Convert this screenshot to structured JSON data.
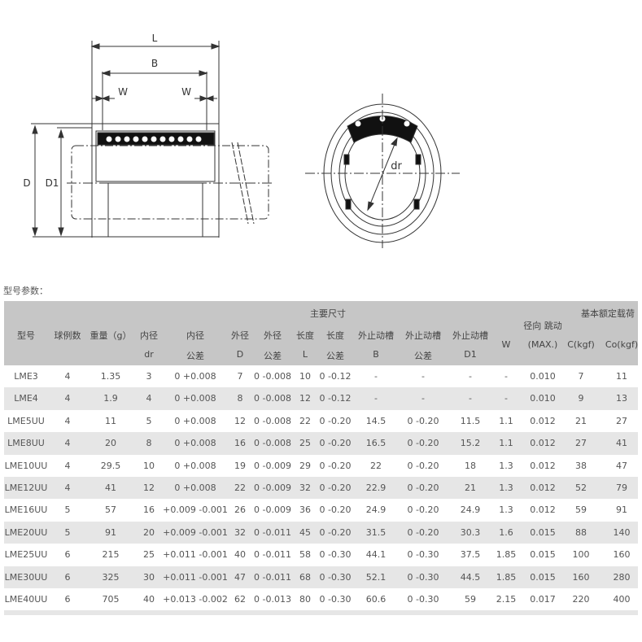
{
  "drawing": {
    "labels": {
      "L": "L",
      "B": "B",
      "W_left": "W",
      "W_right": "W",
      "D": "D",
      "D1": "D1",
      "dr": "dr"
    }
  },
  "section_label": "型号参数：",
  "table": {
    "group_headers": {
      "main_dims": "主要尺寸",
      "load_rating": "基本额定载荷"
    },
    "headers": [
      {
        "top": "型号",
        "bottom": ""
      },
      {
        "top": "球例数",
        "bottom": ""
      },
      {
        "top": "重量（g）",
        "bottom": ""
      },
      {
        "top": "内径",
        "bottom": "dr"
      },
      {
        "top": "内径",
        "bottom": "公差"
      },
      {
        "top": "外径",
        "bottom": "D"
      },
      {
        "top": "外径",
        "bottom": "公差"
      },
      {
        "top": "长度",
        "bottom": "L"
      },
      {
        "top": "长度",
        "bottom": "公差"
      },
      {
        "top": "外止动槽",
        "bottom": "B"
      },
      {
        "top": "外止动槽",
        "bottom": "公差"
      },
      {
        "top": "外止动槽",
        "bottom": "D1"
      },
      {
        "top": "W",
        "bottom": ""
      },
      {
        "top": "径向 跳动",
        "bottom": "(MAX.)"
      },
      {
        "top": "C(kgf)",
        "bottom": ""
      },
      {
        "top": "Co(kgf)",
        "bottom": ""
      }
    ],
    "rows": [
      [
        "LME3",
        "4",
        "1.35",
        "3",
        "0 +0.008",
        "7",
        "0 -0.008",
        "10",
        "0 -0.12",
        "-",
        "-",
        "-",
        "-",
        "0.010",
        "7",
        "11"
      ],
      [
        "LME4",
        "4",
        "1.9",
        "4",
        "0 +0.008",
        "8",
        "0 -0.008",
        "12",
        "0 -0.12",
        "-",
        "-",
        "-",
        "-",
        "0.010",
        "9",
        "13"
      ],
      [
        "LME5UU",
        "4",
        "11",
        "5",
        "0 +0.008",
        "12",
        "0 -0.008",
        "22",
        "0 -0.20",
        "14.5",
        "0 -0.20",
        "11.5",
        "1.1",
        "0.012",
        "21",
        "27"
      ],
      [
        "LME8UU",
        "4",
        "20",
        "8",
        "0 +0.008",
        "16",
        "0 -0.008",
        "25",
        "0 -0.20",
        "16.5",
        "0 -0.20",
        "15.2",
        "1.1",
        "0.012",
        "27",
        "41"
      ],
      [
        "LME10UU",
        "4",
        "29.5",
        "10",
        "0 +0.008",
        "19",
        "0 -0.009",
        "29",
        "0 -0.20",
        "22",
        "0 -0.20",
        "18",
        "1.3",
        "0.012",
        "38",
        "47"
      ],
      [
        "LME12UU",
        "4",
        "41",
        "12",
        "0 +0.008",
        "22",
        "0 -0.009",
        "32",
        "0 -0.20",
        "22.9",
        "0 -0.20",
        "21",
        "1.3",
        "0.012",
        "52",
        "79"
      ],
      [
        "LME16UU",
        "5",
        "57",
        "16",
        "+0.009 -0.001",
        "26",
        "0 -0.009",
        "36",
        "0 -0.20",
        "24.9",
        "0 -0.20",
        "24.9",
        "1.3",
        "0.012",
        "59",
        "91"
      ],
      [
        "LME20UU",
        "5",
        "91",
        "20",
        "+0.009 -0.001",
        "32",
        "0 -0.011",
        "45",
        "0 -0.20",
        "31.5",
        "0 -0.20",
        "30.3",
        "1.6",
        "0.015",
        "88",
        "140"
      ],
      [
        "LME25UU",
        "6",
        "215",
        "25",
        "+0.011 -0.001",
        "40",
        "0 -0.011",
        "58",
        "0 -0.30",
        "44.1",
        "0 -0.30",
        "37.5",
        "1.85",
        "0.015",
        "100",
        "160"
      ],
      [
        "LME30UU",
        "6",
        "325",
        "30",
        "+0.011 -0.001",
        "47",
        "0 -0.011",
        "68",
        "0 -0.30",
        "52.1",
        "0 -0.30",
        "44.5",
        "1.85",
        "0.015",
        "160",
        "280"
      ],
      [
        "LME40UU",
        "6",
        "705",
        "40",
        "+0.013 -0.002",
        "62",
        "0 -0.013",
        "80",
        "0 -0.30",
        "60.6",
        "0 -0.30",
        "59",
        "2.15",
        "0.017",
        "220",
        "400"
      ]
    ]
  }
}
